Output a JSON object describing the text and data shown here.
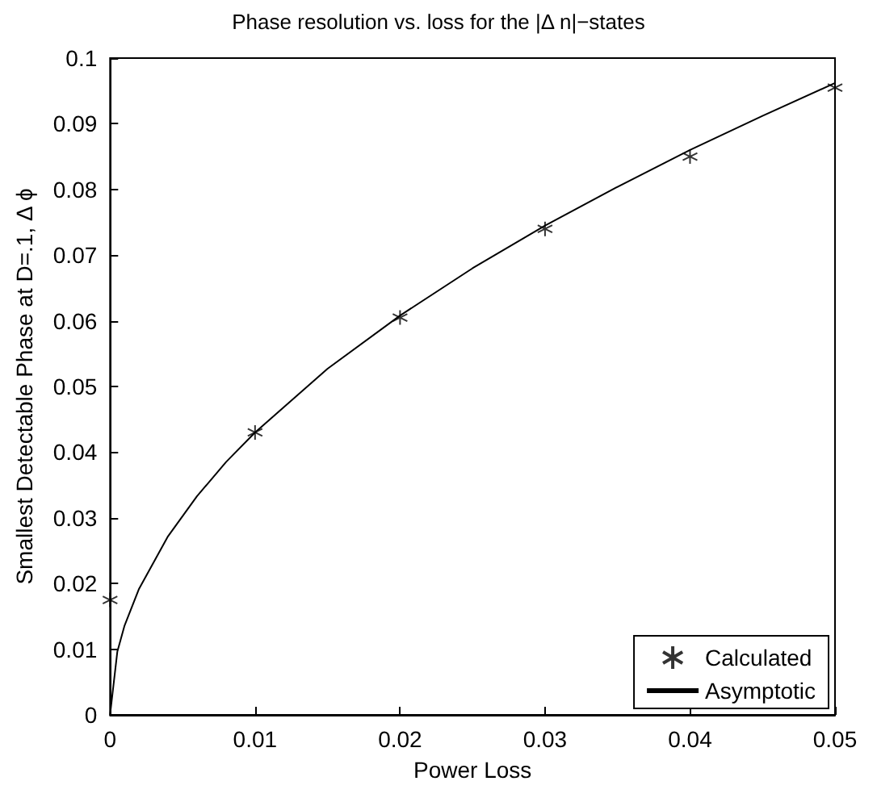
{
  "chart_data": {
    "type": "scatter",
    "title": "Phase resolution vs. loss for the |Δ n|−states",
    "xlabel": "Power Loss",
    "ylabel": "Smallest Detectable Phase at D=.1, Δ ϕ",
    "xlim": [
      0,
      0.05
    ],
    "xticks": [
      0,
      0.01,
      0.02,
      0.03,
      0.04,
      0.05
    ],
    "ylim": [
      0,
      0.1
    ],
    "yticks": [
      0,
      0.01,
      0.02,
      0.03,
      0.04,
      0.05,
      0.06,
      0.07,
      0.08,
      0.09,
      0.1
    ],
    "grid": false,
    "legend": "bottom right",
    "series": [
      {
        "name": "Calculated",
        "marker": "cross",
        "color": "#000000",
        "x": [
          0,
          0.01,
          0.02,
          0.03,
          0.04,
          0.05
        ],
        "values": [
          0.0175,
          0.043,
          0.0605,
          0.074,
          0.085,
          0.0955
        ]
      },
      {
        "name": "Asymptotic",
        "type": "line",
        "marker": "none",
        "line_style": "solid",
        "color": "#000000",
        "x": [
          0,
          0.0005,
          0.001,
          0.002,
          0.004,
          0.006,
          0.008,
          0.01,
          0.015,
          0.02,
          0.025,
          0.03,
          0.035,
          0.04,
          0.045,
          0.05
        ],
        "values": [
          0,
          0.0096,
          0.0136,
          0.0192,
          0.0272,
          0.0333,
          0.0385,
          0.043,
          0.0527,
          0.0608,
          0.068,
          0.0745,
          0.0804,
          0.086,
          0.0912,
          0.0962
        ]
      }
    ]
  }
}
